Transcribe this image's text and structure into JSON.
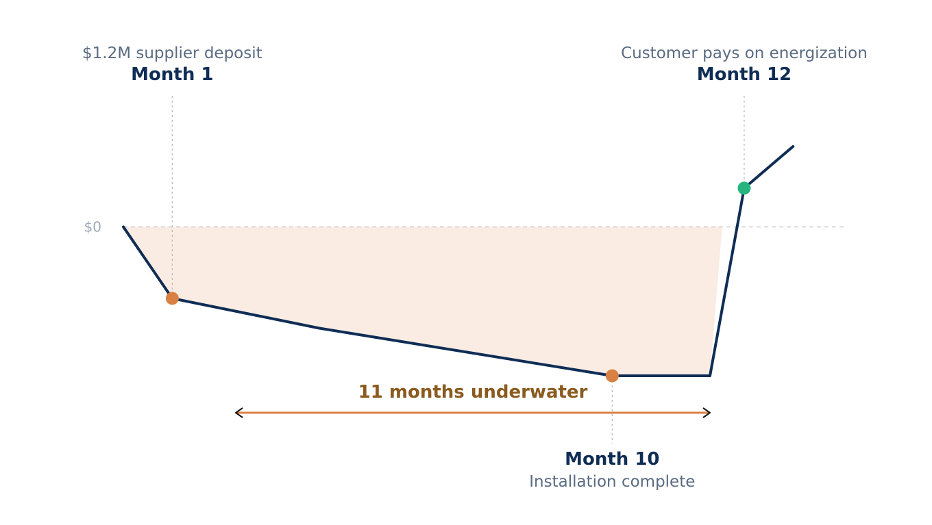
{
  "chart_data": {
    "type": "line",
    "zero_label": "$0",
    "series": [
      {
        "points": [
          {
            "x": 0,
            "y": 0
          },
          {
            "x": 1,
            "y": -1.2
          },
          {
            "x": 4,
            "y": -1.7
          },
          {
            "x": 10,
            "y": -2.5
          },
          {
            "x": 12,
            "y": -2.5
          },
          {
            "x": 12.7,
            "y": 0.65
          },
          {
            "x": 13.7,
            "y": 1.35
          }
        ]
      }
    ],
    "underwater_area": {
      "points": [
        {
          "x": 0,
          "y": 0
        },
        {
          "x": 1,
          "y": -1.2
        },
        {
          "x": 4,
          "y": -1.7
        },
        {
          "x": 10,
          "y": -2.5
        },
        {
          "x": 12,
          "y": -2.5
        },
        {
          "x": 12.25,
          "y": 0
        }
      ]
    },
    "markers": [
      {
        "x": 1,
        "y": -1.2,
        "color": "#d98142",
        "month": "Month 1",
        "caption": "$1.2M supplier deposit",
        "position": "top"
      },
      {
        "x": 10,
        "y": -2.5,
        "color": "#d98142",
        "month": "Month 10",
        "caption": "Installation complete",
        "position": "bottom"
      },
      {
        "x": 12.7,
        "y": 0.65,
        "color": "#26b57f",
        "month": "Month 12",
        "caption": "Customer pays on energization",
        "position": "top"
      }
    ],
    "span": {
      "from": 2.3,
      "to": 12,
      "label": "11 months underwater"
    },
    "xlim": [
      0,
      15
    ],
    "ylim": [
      -3.5,
      2.2
    ],
    "colors": {
      "line": "#0f2d55",
      "fill": "#faece3",
      "span_line": "#d98142",
      "span_text": "#8a5a1e",
      "zero_line": "#cccccc",
      "guide": "#bbbbbb"
    }
  }
}
